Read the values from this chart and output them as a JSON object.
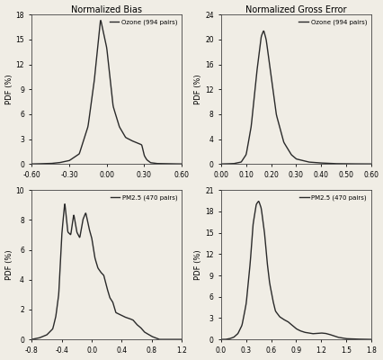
{
  "title_nb": "Normalized Bias",
  "title_nge": "Normalized Gross Error",
  "ylabel": "PDF (%)",
  "line_color": "#2a2a2a",
  "line_width": 1.0,
  "bg_color": "#f0ede5",
  "panels": [
    {
      "label": "Ozone (994 pairs)",
      "xlim": [
        -0.6,
        0.6
      ],
      "ylim": [
        0,
        18
      ],
      "yticks": [
        0,
        3,
        6,
        9,
        12,
        15,
        18
      ],
      "xticks": [
        -0.6,
        -0.3,
        0.0,
        0.3,
        0.6
      ],
      "xtick_labels": [
        "-0.60",
        "-0.30",
        "0.00",
        "0.30",
        "0.60"
      ],
      "title_idx": 0,
      "curve_type": "nb_ozone"
    },
    {
      "label": "Ozone (994 pairs)",
      "xlim": [
        0.0,
        0.6
      ],
      "ylim": [
        0,
        24
      ],
      "yticks": [
        0,
        4,
        8,
        12,
        16,
        20,
        24
      ],
      "xticks": [
        0.0,
        0.1,
        0.2,
        0.3,
        0.4,
        0.5,
        0.6
      ],
      "xtick_labels": [
        "0.00",
        "0.10",
        "0.20",
        "0.30",
        "0.40",
        "0.50",
        "0.60"
      ],
      "title_idx": 1,
      "curve_type": "nge_ozone"
    },
    {
      "label": "PM2.5 (470 pairs)",
      "xlim": [
        -0.8,
        1.2
      ],
      "ylim": [
        0,
        10
      ],
      "yticks": [
        0,
        2,
        4,
        6,
        8,
        10
      ],
      "xticks": [
        -0.8,
        -0.4,
        0.0,
        0.4,
        0.8,
        1.2
      ],
      "xtick_labels": [
        "-0.8",
        "-0.4",
        "0.0",
        "0.4",
        "0.8",
        "1.2"
      ],
      "title_idx": -1,
      "curve_type": "nb_pm25"
    },
    {
      "label": "PM2.5 (470 pairs)",
      "xlim": [
        0.0,
        1.8
      ],
      "ylim": [
        0,
        21
      ],
      "yticks": [
        0,
        3,
        6,
        9,
        12,
        15,
        18,
        21
      ],
      "xticks": [
        0.0,
        0.3,
        0.6,
        0.9,
        1.2,
        1.5,
        1.8
      ],
      "xtick_labels": [
        "0.0",
        "0.3",
        "0.6",
        "0.9",
        "1.2",
        "1.5",
        "1.8"
      ],
      "title_idx": -1,
      "curve_type": "nge_pm25"
    }
  ]
}
